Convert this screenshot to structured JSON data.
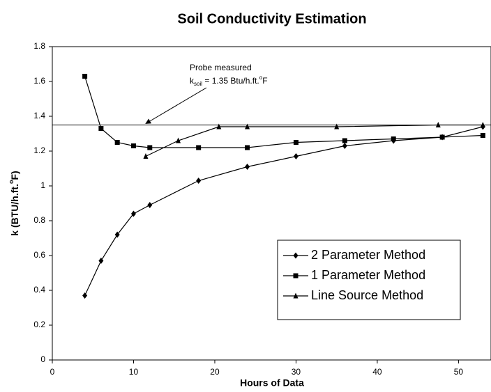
{
  "chart_data": {
    "type": "line",
    "title": "Soil Conductivity Estimation",
    "x_label": "Hours of Data",
    "y_label": {
      "main": "k (BTU/h.ft.",
      "sup": "o",
      "end": "F)"
    },
    "xlim": [
      0,
      54
    ],
    "xticks": [
      0,
      10,
      20,
      30,
      40,
      50
    ],
    "ylim": [
      0,
      1.8
    ],
    "yticks": [
      0,
      0.2,
      0.4,
      0.6,
      0.8,
      1,
      1.2,
      1.4,
      1.6,
      1.8
    ],
    "reference_line": 1.35,
    "annotation": {
      "line1": "Probe measured",
      "k": "k",
      "sub": "soil",
      "mid": " = 1.35 Btu/h.ft.",
      "sup": "o",
      "end": "F"
    },
    "legend": "lower right",
    "series": [
      {
        "name": "2 Parameter Method",
        "color": "#000000",
        "marker": "diamond",
        "x": [
          4,
          6,
          8,
          10,
          12,
          18,
          24,
          30,
          36,
          42,
          48,
          53
        ],
        "values": [
          0.37,
          0.57,
          0.72,
          0.84,
          0.89,
          1.03,
          1.11,
          1.17,
          1.23,
          1.26,
          1.28,
          1.34
        ]
      },
      {
        "name": "1 Parameter Method",
        "color": "#000000",
        "marker": "square",
        "x": [
          4,
          6,
          8,
          10,
          12,
          18,
          24,
          30,
          36,
          42,
          48,
          53
        ],
        "values": [
          1.63,
          1.33,
          1.25,
          1.23,
          1.22,
          1.22,
          1.22,
          1.25,
          1.26,
          1.27,
          1.28,
          1.29
        ]
      },
      {
        "name": "Line Source Method",
        "color": "#000000",
        "marker": "triangle",
        "x": [
          11.5,
          15.5,
          20.5,
          24,
          35,
          47.5,
          53
        ],
        "values": [
          1.17,
          1.26,
          1.34,
          1.34,
          1.34,
          1.35,
          1.35
        ]
      }
    ]
  }
}
